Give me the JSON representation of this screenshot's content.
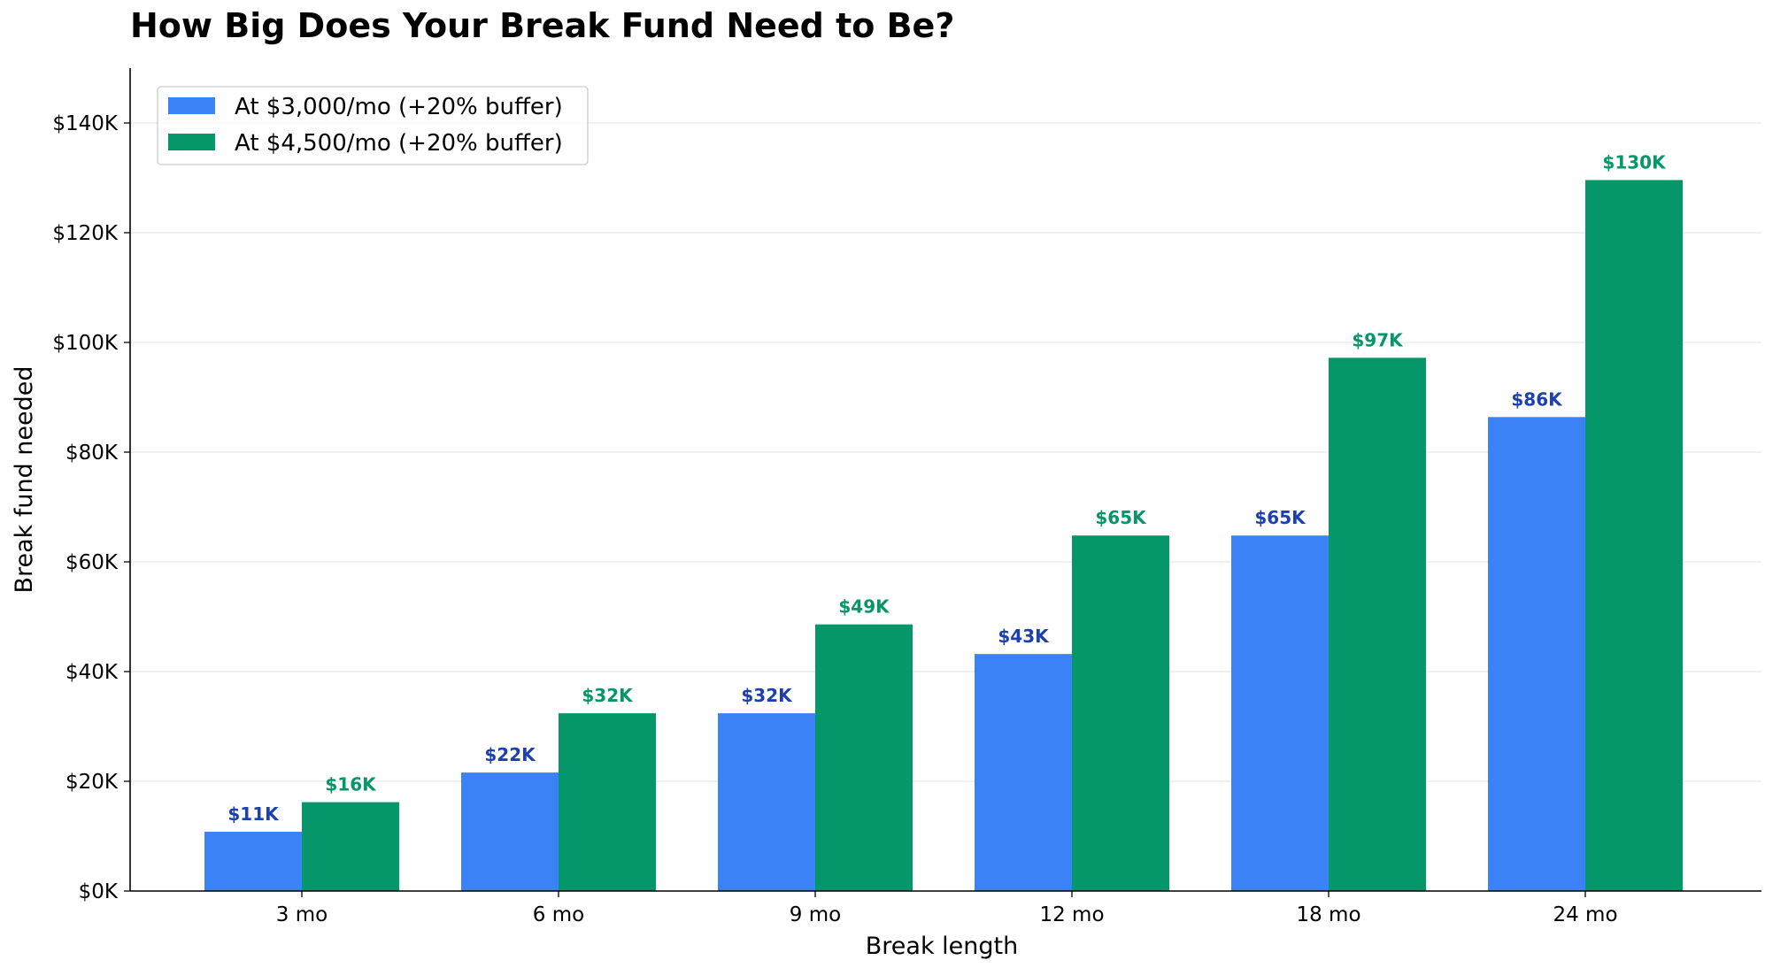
{
  "chart_data": {
    "type": "bar",
    "title": "How Big Does Your Break Fund Need to Be?",
    "xlabel": "Break length",
    "ylabel": "Break fund needed",
    "categories": [
      "3 mo",
      "6 mo",
      "9 mo",
      "12 mo",
      "18 mo",
      "24 mo"
    ],
    "series": [
      {
        "name": "At $3,000/mo (+20% buffer)",
        "values": [
          10800,
          21600,
          32400,
          43200,
          64800,
          86400
        ],
        "labels": [
          "$11K",
          "$22K",
          "$32K",
          "$43K",
          "$65K",
          "$86K"
        ],
        "color": "#3b82f6",
        "label_color": "#1e40af"
      },
      {
        "name": "At $4,500/mo (+20% buffer)",
        "values": [
          16200,
          32400,
          48600,
          64800,
          97200,
          129600
        ],
        "labels": [
          "$16K",
          "$32K",
          "$49K",
          "$65K",
          "$97K",
          "$130K"
        ],
        "color": "#059669",
        "label_color": "#059669"
      }
    ],
    "ylim": [
      0,
      150000
    ],
    "yticks": [
      0,
      20000,
      40000,
      60000,
      80000,
      100000,
      120000,
      140000
    ],
    "ytick_labels": [
      "$0K",
      "$20K",
      "$40K",
      "$60K",
      "$80K",
      "$100K",
      "$120K",
      "$140K"
    ],
    "grid": "horizontal",
    "legend_position": "top-left"
  }
}
